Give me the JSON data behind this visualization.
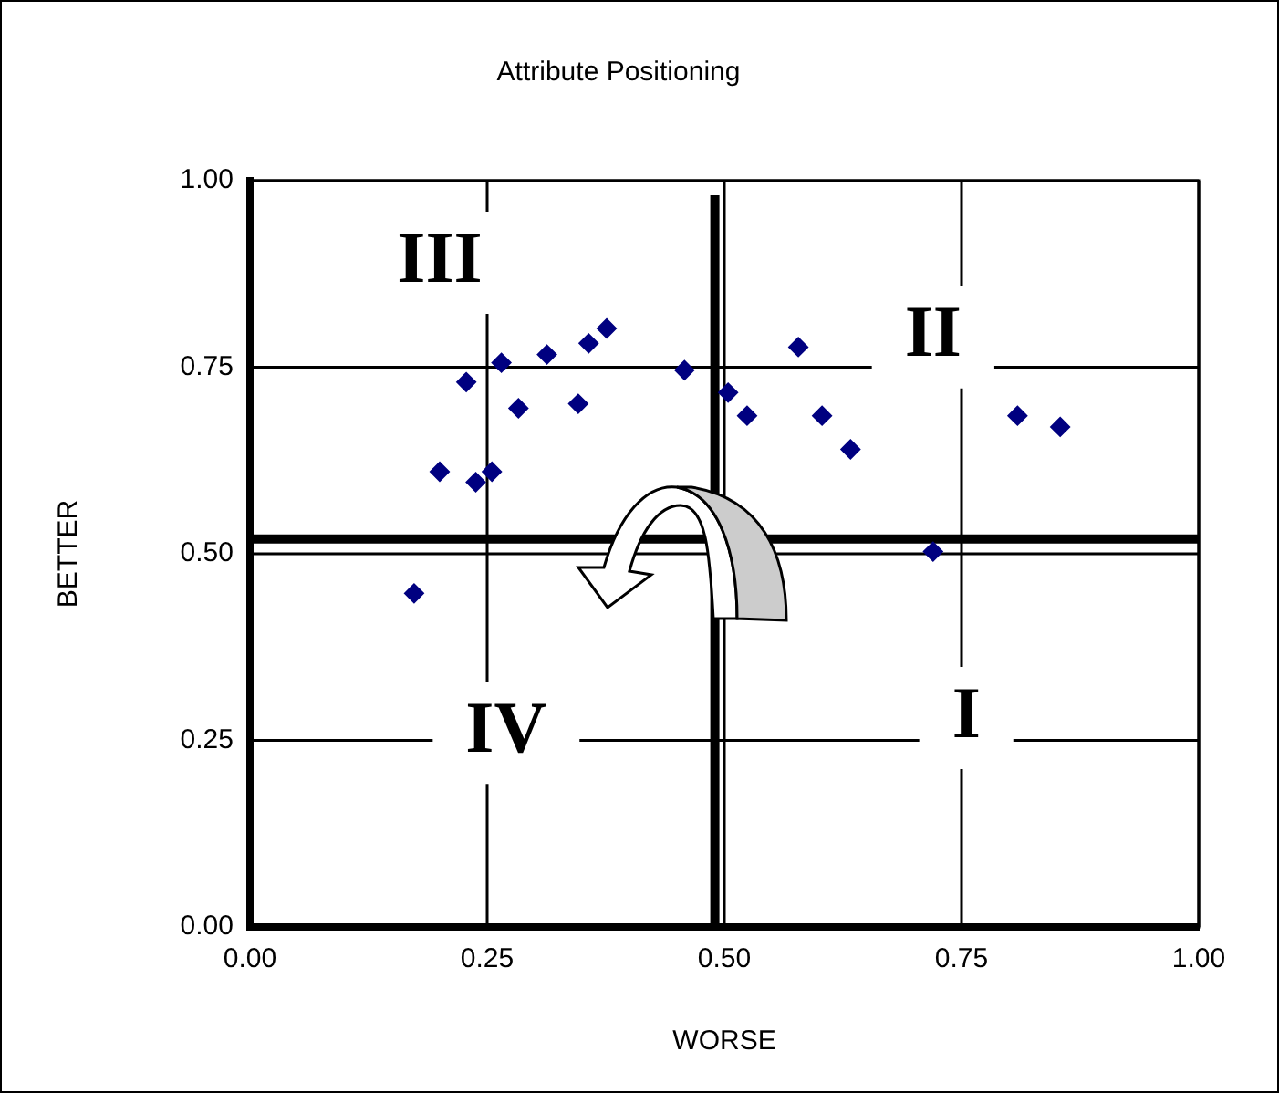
{
  "chart_data": {
    "type": "scatter",
    "title": "Attribute Positioning",
    "xlabel": "WORSE",
    "ylabel": "BETTER",
    "x": [
      0.228,
      0.265,
      0.313,
      0.357,
      0.376,
      0.283,
      0.346,
      0.458,
      0.2,
      0.238,
      0.255,
      0.173,
      0.504,
      0.524,
      0.578,
      0.603,
      0.633,
      0.72,
      0.809,
      0.854
    ],
    "series": [
      {
        "color": "#000080",
        "values": [
          0.73,
          0.756,
          0.767,
          0.782,
          0.802,
          0.695,
          0.701,
          0.746,
          0.61,
          0.596,
          0.61,
          0.447,
          0.716,
          0.685,
          0.777,
          0.685,
          0.64,
          0.503,
          0.685,
          0.67
        ]
      }
    ],
    "xlim": [
      0,
      1
    ],
    "ylim": [
      0,
      1
    ],
    "xticks": [
      {
        "value": 0,
        "label": "0.00"
      },
      {
        "value": 0.25,
        "label": "0.25"
      },
      {
        "value": 0.5,
        "label": "0.50"
      },
      {
        "value": 0.75,
        "label": "0.75"
      },
      {
        "value": 1,
        "label": "1.00"
      }
    ],
    "yticks": [
      {
        "value": 0,
        "label": "0.00"
      },
      {
        "value": 0.25,
        "label": "0.25"
      },
      {
        "value": 0.5,
        "label": "0.50"
      },
      {
        "value": 0.75,
        "label": "0.75"
      },
      {
        "value": 1,
        "label": "1.00"
      }
    ],
    "grid": true,
    "legend": false,
    "marker": "diamond",
    "ref_lines": [
      {
        "axis": "x",
        "value": 0.49,
        "color": "#000000"
      },
      {
        "axis": "y",
        "value": 0.52,
        "color": "#000000"
      }
    ],
    "annotations": [
      "III",
      "II",
      "IV",
      "I"
    ]
  }
}
